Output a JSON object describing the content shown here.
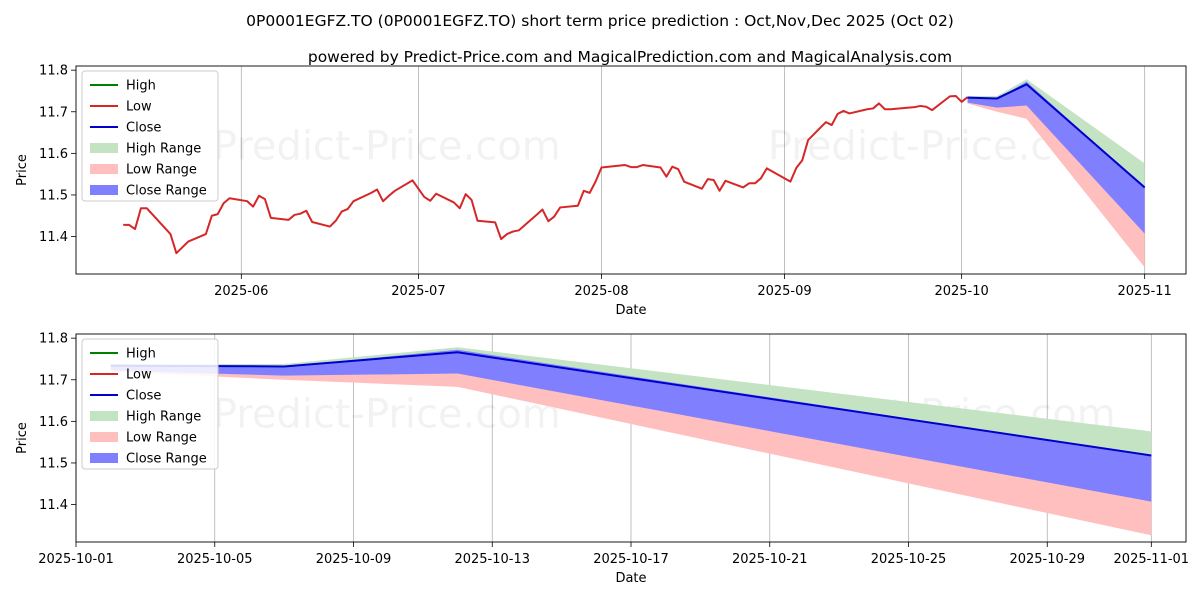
{
  "title": "0P0001EGFZ.TO (0P0001EGFZ.TO) short term price prediction : Oct,Nov,Dec 2025 (Oct 02)",
  "subtitle": "powered by Predict-Price.com and MagicalPrediction.com and MagicalAnalysis.com",
  "watermark": "Predict-Price.com",
  "colors": {
    "high": "#008000",
    "low": "#d62728",
    "close": "#0000cc",
    "high_range": "#c3e3c3",
    "low_range": "#ffbfbf",
    "close_range": "#8080ff"
  },
  "chart_data": [
    {
      "type": "line",
      "xlabel": "Date",
      "ylabel": "Price",
      "xlim": [
        "2025-05-04",
        "2025-11-08"
      ],
      "ylim": [
        11.31,
        11.81
      ],
      "yticks": [
        11.4,
        11.5,
        11.6,
        11.7,
        11.8
      ],
      "ytick_labels": [
        "11.4",
        "11.5",
        "11.6",
        "11.7",
        "11.8"
      ],
      "xticks": [
        "2025-06-01",
        "2025-07-01",
        "2025-08-01",
        "2025-09-01",
        "2025-10-01",
        "2025-11-01"
      ],
      "xtick_labels": [
        "2025-06",
        "2025-07",
        "2025-08",
        "2025-09",
        "2025-10",
        "2025-11"
      ],
      "grid": "x",
      "legend_position": "top-left",
      "legend": [
        "High",
        "Low",
        "Close",
        "High Range",
        "Low Range",
        "Close Range"
      ],
      "history": {
        "x": [
          "2025-05-12",
          "2025-05-13",
          "2025-05-14",
          "2025-05-15",
          "2025-05-16",
          "2025-05-20",
          "2025-05-21",
          "2025-05-23",
          "2025-05-26",
          "2025-05-27",
          "2025-05-28",
          "2025-05-29",
          "2025-05-30",
          "2025-06-02",
          "2025-06-03",
          "2025-06-04",
          "2025-06-05",
          "2025-06-06",
          "2025-06-09",
          "2025-06-10",
          "2025-06-11",
          "2025-06-12",
          "2025-06-13",
          "2025-06-16",
          "2025-06-17",
          "2025-06-18",
          "2025-06-19",
          "2025-06-20",
          "2025-06-23",
          "2025-06-24",
          "2025-06-25",
          "2025-06-26",
          "2025-06-27",
          "2025-06-30",
          "2025-07-02",
          "2025-07-03",
          "2025-07-04",
          "2025-07-07",
          "2025-07-08",
          "2025-07-09",
          "2025-07-10",
          "2025-07-11",
          "2025-07-14",
          "2025-07-15",
          "2025-07-16",
          "2025-07-17",
          "2025-07-18",
          "2025-07-21",
          "2025-07-22",
          "2025-07-23",
          "2025-07-24",
          "2025-07-25",
          "2025-07-28",
          "2025-07-29",
          "2025-07-30",
          "2025-07-31",
          "2025-08-01",
          "2025-08-05",
          "2025-08-06",
          "2025-08-07",
          "2025-08-08",
          "2025-08-11",
          "2025-08-12",
          "2025-08-13",
          "2025-08-14",
          "2025-08-15",
          "2025-08-18",
          "2025-08-19",
          "2025-08-20",
          "2025-08-21",
          "2025-08-22",
          "2025-08-25",
          "2025-08-26",
          "2025-08-27",
          "2025-08-28",
          "2025-08-29",
          "2025-09-02",
          "2025-09-03",
          "2025-09-04",
          "2025-09-05",
          "2025-09-08",
          "2025-09-09",
          "2025-09-10",
          "2025-09-11",
          "2025-09-12",
          "2025-09-15",
          "2025-09-16",
          "2025-09-17",
          "2025-09-18",
          "2025-09-19",
          "2025-09-22",
          "2025-09-23",
          "2025-09-24",
          "2025-09-25",
          "2025-09-26",
          "2025-09-29",
          "2025-09-30",
          "2025-10-01",
          "2025-10-02"
        ],
        "low": [
          11.428,
          11.428,
          11.418,
          11.468,
          11.468,
          11.406,
          11.36,
          11.388,
          11.406,
          11.45,
          11.454,
          11.48,
          11.492,
          11.485,
          11.472,
          11.498,
          11.49,
          11.445,
          11.44,
          11.452,
          11.455,
          11.462,
          11.435,
          11.424,
          11.438,
          11.46,
          11.466,
          11.485,
          11.505,
          11.513,
          11.485,
          11.498,
          11.51,
          11.535,
          11.495,
          11.486,
          11.503,
          11.482,
          11.468,
          11.502,
          11.488,
          11.438,
          11.434,
          11.394,
          11.406,
          11.412,
          11.415,
          11.452,
          11.465,
          11.437,
          11.448,
          11.47,
          11.474,
          11.51,
          11.505,
          11.532,
          11.566,
          11.572,
          11.567,
          11.567,
          11.572,
          11.566,
          11.544,
          11.568,
          11.562,
          11.532,
          11.515,
          11.538,
          11.536,
          11.51,
          11.534,
          11.518,
          11.528,
          11.528,
          11.54,
          11.564,
          11.532,
          11.565,
          11.583,
          11.632,
          11.675,
          11.668,
          11.695,
          11.702,
          11.696,
          11.706,
          11.708,
          11.72,
          11.706,
          11.706,
          11.71,
          11.711,
          11.714,
          11.712,
          11.704,
          11.737,
          11.738,
          11.724,
          11.735
        ]
      }
    },
    {
      "type": "area",
      "xlabel": "Date",
      "ylabel": "Price",
      "xlim": [
        "2025-10-01",
        "2025-11-02"
      ],
      "ylim": [
        11.31,
        11.81
      ],
      "yticks": [
        11.4,
        11.5,
        11.6,
        11.7,
        11.8
      ],
      "ytick_labels": [
        "11.4",
        "11.5",
        "11.6",
        "11.7",
        "11.8"
      ],
      "xticks": [
        "2025-10-01",
        "2025-10-05",
        "2025-10-09",
        "2025-10-13",
        "2025-10-17",
        "2025-10-21",
        "2025-10-25",
        "2025-10-29",
        "2025-11-01"
      ],
      "xtick_labels": [
        "2025-10-01",
        "2025-10-05",
        "2025-10-09",
        "2025-10-13",
        "2025-10-17",
        "2025-10-21",
        "2025-10-25",
        "2025-10-29",
        "2025-11-01"
      ],
      "grid": "x",
      "legend_position": "top-left",
      "legend": [
        "High",
        "Low",
        "Close",
        "High Range",
        "Low Range",
        "Close Range"
      ],
      "forecast": {
        "x": [
          "2025-10-02",
          "2025-10-07",
          "2025-10-12",
          "2025-11-01"
        ],
        "close": [
          11.734,
          11.732,
          11.766,
          11.518
        ],
        "high_range_upper": [
          11.738,
          11.738,
          11.778,
          11.576
        ],
        "high_range_lower": [
          11.734,
          11.732,
          11.766,
          11.518
        ],
        "close_range_upper": [
          11.734,
          11.732,
          11.772,
          11.518
        ],
        "close_range_lower": [
          11.722,
          11.71,
          11.715,
          11.407
        ],
        "low_range_upper": [
          11.734,
          11.732,
          11.766,
          11.518
        ],
        "low_range_lower": [
          11.72,
          11.7,
          11.683,
          11.326
        ]
      }
    }
  ]
}
